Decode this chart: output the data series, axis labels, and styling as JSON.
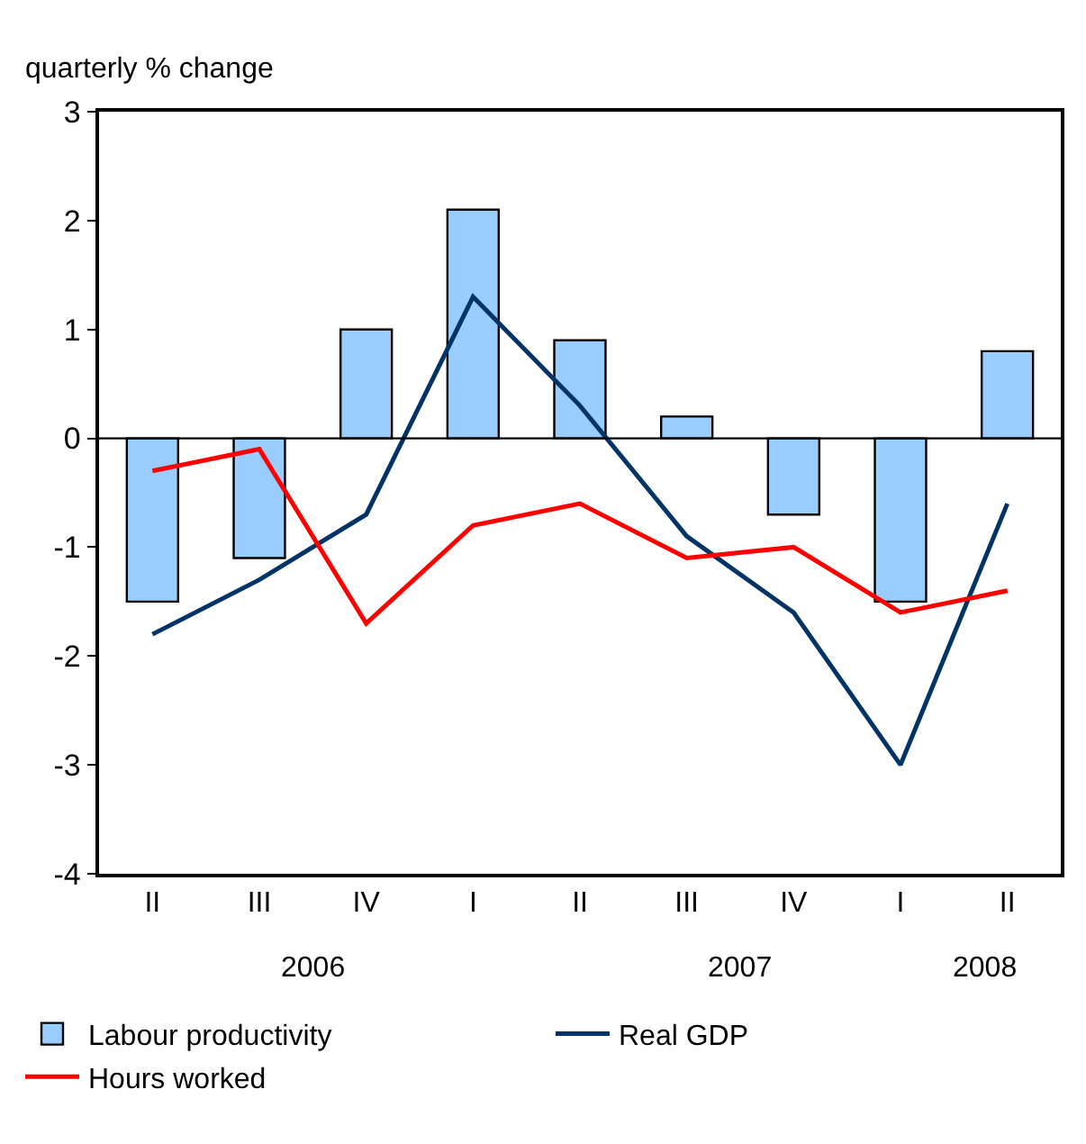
{
  "chart_data": {
    "type": "bar",
    "ylabel": "quarterly % change",
    "categories": [
      "II",
      "III",
      "IV",
      "I",
      "II",
      "III",
      "IV",
      "I",
      "II"
    ],
    "annotations": [
      "2006",
      "2007",
      "2008"
    ],
    "series": [
      {
        "name": "Labour productivity",
        "color": "#99ccff",
        "values": [
          -1.5,
          -1.1,
          1.0,
          2.1,
          0.9,
          0.2,
          -0.7,
          -1.5,
          0.8
        ]
      },
      {
        "name": "Real GDP",
        "type": "line",
        "color": "#003366",
        "values": [
          -1.8,
          -1.3,
          -0.7,
          1.3,
          0.3,
          -0.9,
          -1.6,
          -3.0,
          -0.6
        ]
      },
      {
        "name": "Hours worked",
        "type": "line",
        "color": "#ff0000",
        "values": [
          -0.3,
          -0.1,
          -1.7,
          -0.8,
          -0.6,
          -1.1,
          -1.0,
          -1.6,
          -1.4
        ]
      }
    ],
    "ylim": [
      -4,
      3
    ],
    "yticks": [
      -4,
      -3,
      -2,
      -1,
      0,
      1,
      2,
      3
    ],
    "ref_lines": [
      {
        "axis": "y",
        "value": 0,
        "color": "#000000"
      }
    ],
    "legend": "bottom",
    "marker": "none"
  }
}
